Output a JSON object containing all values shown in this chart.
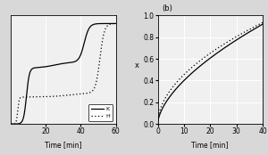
{
  "left_xlabel": "Time [min]",
  "right_xlabel": "Time [min]",
  "right_ylabel": "x",
  "right_label": "(b)",
  "left_legend_solid": "K",
  "left_legend_dot": "H",
  "left_xlim": [
    0,
    60
  ],
  "right_xlim": [
    0,
    40
  ],
  "right_ylim": [
    0,
    1
  ],
  "left_xticks": [
    20,
    40,
    60
  ],
  "right_xticks": [
    0,
    10,
    20,
    30,
    40
  ],
  "right_yticks": [
    0,
    0.2,
    0.4,
    0.6,
    0.8,
    1.0
  ],
  "bg_color": "#d8d8d8",
  "plot_bg": "#f0f0f0",
  "line_color": "#000000",
  "grid_color": "#ffffff"
}
